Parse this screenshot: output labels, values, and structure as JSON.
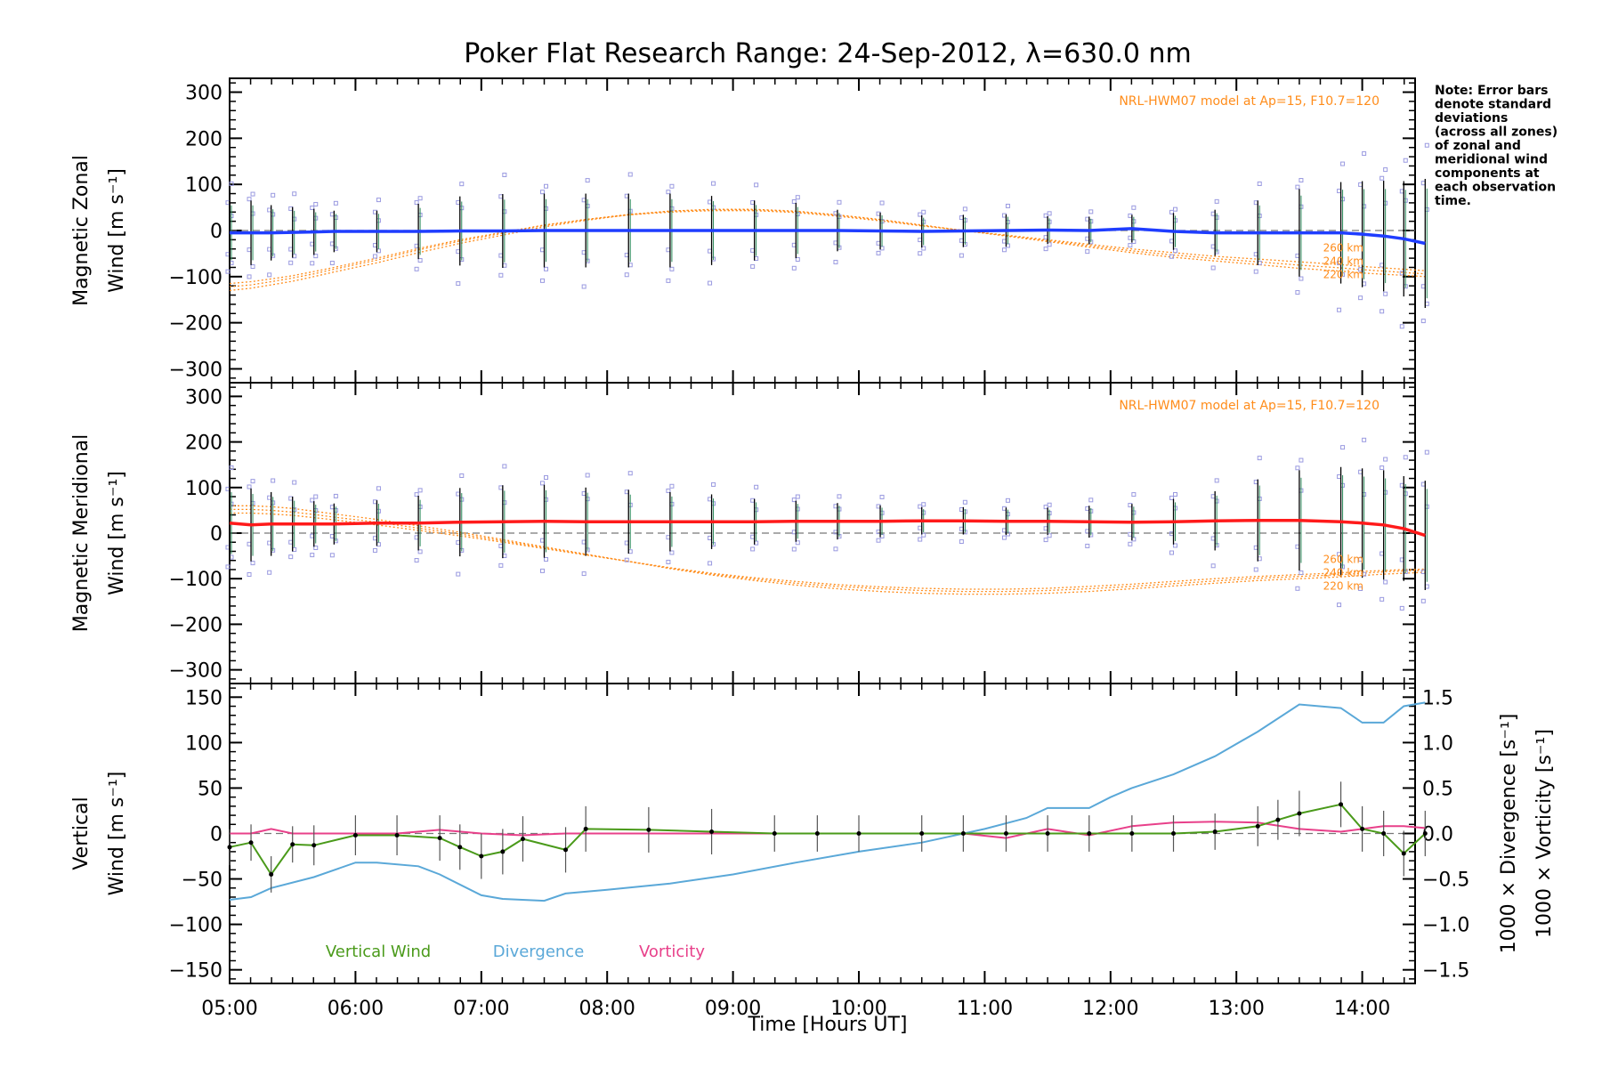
{
  "title": "Poker Flat Research Range: 24-Sep-2012, λ=630.0 nm",
  "note": [
    "Note: Error bars",
    "denote standard",
    "deviations",
    "(across all zones)",
    "of zonal and",
    "meridional wind",
    "components at",
    "each observation",
    "time."
  ],
  "colors": {
    "zonal": "#1f3dff",
    "meridional": "#ff1a1a",
    "model": "#ff8c1a",
    "vertical": "#4a9a1a",
    "divergence": "#5aa8d8",
    "vorticity": "#e8408a",
    "errorbar": "#000000",
    "scatter": "#9a9ae0"
  },
  "chart_data": [
    {
      "type": "line",
      "name": "zonal",
      "ylabel_line1": "Magnetic Zonal",
      "ylabel_line2": "Wind [m s⁻¹]",
      "ylim": [
        -330,
        330
      ],
      "yticks": [
        -300,
        -200,
        -100,
        0,
        100,
        200,
        300
      ],
      "ytick_labels": [
        "−300",
        "−200",
        "−100",
        "0",
        "100",
        "200",
        "300"
      ],
      "model_label": "NRL-HWM07 model at Ap=15, F10.7=120",
      "altitudes": [
        "260 km",
        "240 km",
        "220 km"
      ],
      "x": [
        5.0,
        5.17,
        5.33,
        5.5,
        5.67,
        5.83,
        6.17,
        6.5,
        6.83,
        7.17,
        7.5,
        7.83,
        8.17,
        8.5,
        8.83,
        9.17,
        9.5,
        9.83,
        10.17,
        10.5,
        10.83,
        11.17,
        11.5,
        11.83,
        12.17,
        12.5,
        12.83,
        13.17,
        13.5,
        13.83,
        14.0,
        14.17,
        14.33,
        14.5
      ],
      "y": [
        -5,
        -5,
        -5,
        -4,
        -3,
        -2,
        -2,
        -2,
        -1,
        -1,
        0,
        0,
        0,
        0,
        0,
        0,
        0,
        0,
        -1,
        -2,
        -1,
        0,
        1,
        0,
        4,
        -2,
        -5,
        -5,
        -5,
        -5,
        -8,
        -12,
        -18,
        -28
      ],
      "err": [
        70,
        70,
        60,
        55,
        50,
        45,
        45,
        60,
        75,
        80,
        80,
        80,
        80,
        80,
        75,
        65,
        60,
        45,
        40,
        35,
        35,
        35,
        30,
        30,
        30,
        40,
        50,
        70,
        95,
        110,
        115,
        120,
        125,
        140
      ],
      "model_260": [
        -130,
        -125,
        -118,
        -110,
        -100,
        -90,
        -70,
        -48,
        -28,
        -10,
        8,
        22,
        34,
        42,
        46,
        46,
        42,
        34,
        24,
        12,
        0,
        -12,
        -24,
        -36,
        -48,
        -58,
        -66,
        -74,
        -82,
        -88,
        -92,
        -95,
        -97,
        -100
      ],
      "model_240": [
        -122,
        -118,
        -111,
        -103,
        -94,
        -84,
        -64,
        -42,
        -23,
        -6,
        11,
        24,
        35,
        42,
        45,
        45,
        41,
        33,
        23,
        11,
        0,
        -11,
        -22,
        -33,
        -44,
        -53,
        -61,
        -68,
        -75,
        -81,
        -85,
        -88,
        -91,
        -94
      ],
      "model_220": [
        -115,
        -111,
        -105,
        -98,
        -89,
        -80,
        -60,
        -39,
        -20,
        -4,
        12,
        24,
        34,
        40,
        43,
        43,
        39,
        31,
        21,
        10,
        0,
        -10,
        -20,
        -30,
        -40,
        -48,
        -56,
        -62,
        -68,
        -74,
        -78,
        -81,
        -84,
        -87
      ]
    },
    {
      "type": "line",
      "name": "meridional",
      "ylabel_line1": "Magnetic Meridional",
      "ylabel_line2": "Wind [m s⁻¹]",
      "ylim": [
        -330,
        330
      ],
      "yticks": [
        -300,
        -200,
        -100,
        0,
        100,
        200,
        300
      ],
      "ytick_labels": [
        "−300",
        "−200",
        "−100",
        "0",
        "100",
        "200",
        "300"
      ],
      "model_label": "NRL-HWM07 model at Ap=15, F10.7=120",
      "altitudes": [
        "260 km",
        "240 km",
        "220 km"
      ],
      "x": [
        5.0,
        5.17,
        5.33,
        5.5,
        5.67,
        5.83,
        6.17,
        6.5,
        6.83,
        7.17,
        7.5,
        7.83,
        8.17,
        8.5,
        8.83,
        9.17,
        9.5,
        9.83,
        10.17,
        10.5,
        10.83,
        11.17,
        11.5,
        11.83,
        12.17,
        12.5,
        12.83,
        13.17,
        13.5,
        13.83,
        14.0,
        14.17,
        14.33,
        14.5
      ],
      "y": [
        22,
        18,
        20,
        20,
        20,
        20,
        22,
        22,
        24,
        25,
        26,
        25,
        25,
        25,
        25,
        25,
        26,
        26,
        26,
        27,
        27,
        26,
        26,
        25,
        24,
        25,
        27,
        28,
        28,
        25,
        22,
        18,
        10,
        -5
      ],
      "err": [
        80,
        80,
        70,
        60,
        50,
        45,
        50,
        60,
        75,
        80,
        80,
        75,
        70,
        65,
        60,
        50,
        45,
        40,
        35,
        30,
        30,
        30,
        30,
        35,
        40,
        50,
        65,
        90,
        110,
        120,
        120,
        120,
        115,
        120
      ],
      "model_260": [
        60,
        60,
        58,
        54,
        48,
        42,
        30,
        16,
        2,
        -14,
        -30,
        -46,
        -62,
        -78,
        -92,
        -104,
        -114,
        -122,
        -128,
        -132,
        -134,
        -134,
        -132,
        -128,
        -122,
        -116,
        -110,
        -104,
        -100,
        -96,
        -93,
        -90,
        -88,
        -86
      ],
      "model_240": [
        52,
        52,
        50,
        46,
        41,
        35,
        24,
        11,
        -2,
        -17,
        -32,
        -47,
        -62,
        -77,
        -90,
        -101,
        -110,
        -117,
        -122,
        -126,
        -128,
        -128,
        -126,
        -122,
        -117,
        -111,
        -105,
        -99,
        -95,
        -91,
        -88,
        -85,
        -83,
        -82
      ],
      "model_220": [
        44,
        44,
        42,
        39,
        34,
        29,
        18,
        6,
        -6,
        -20,
        -34,
        -48,
        -62,
        -76,
        -88,
        -98,
        -106,
        -113,
        -118,
        -121,
        -123,
        -123,
        -121,
        -117,
        -112,
        -106,
        -100,
        -95,
        -91,
        -87,
        -84,
        -82,
        -80,
        -79
      ]
    },
    {
      "type": "line",
      "name": "vertical",
      "ylabel_line1": "Vertical",
      "ylabel_line2": "Wind [m s⁻¹]",
      "ylabel_right1": "1000 × Divergence [s⁻¹]",
      "ylabel_right2": "1000 × Vorticity [s⁻¹]",
      "ylim": [
        -165,
        165
      ],
      "yticks": [
        -150,
        -100,
        -50,
        0,
        50,
        100,
        150
      ],
      "ytick_labels": [
        "−150",
        "−100",
        "−50",
        "0",
        "50",
        "100",
        "150"
      ],
      "ylim_right": [
        -1.65,
        1.65
      ],
      "yticks_right": [
        -1.5,
        -1.0,
        -0.5,
        0.0,
        0.5,
        1.0,
        1.5
      ],
      "ytick_labels_right": [
        "−1.5",
        "−1.0",
        "−0.5",
        "0.0",
        "0.5",
        "1.0",
        "1.5"
      ],
      "legend": [
        "Vertical Wind",
        "Divergence",
        "Vorticity"
      ],
      "vertical": {
        "x": [
          5.0,
          5.17,
          5.33,
          5.5,
          5.67,
          6.0,
          6.33,
          6.67,
          6.83,
          7.0,
          7.17,
          7.33,
          7.67,
          7.83,
          8.33,
          8.83,
          9.33,
          9.67,
          10.0,
          10.5,
          10.83,
          11.17,
          11.5,
          11.83,
          12.17,
          12.5,
          12.83,
          13.17,
          13.33,
          13.5,
          13.83,
          14.0,
          14.17,
          14.33,
          14.5
        ],
        "y": [
          -15,
          -10,
          -45,
          -12,
          -13,
          -2,
          -2,
          -5,
          -15,
          -25,
          -20,
          -6,
          -18,
          5,
          4,
          2,
          0,
          0,
          0,
          0,
          0,
          0,
          0,
          0,
          0,
          0,
          2,
          8,
          15,
          22,
          32,
          5,
          0,
          -22,
          0
        ],
        "err": [
          20,
          20,
          20,
          20,
          22,
          22,
          22,
          25,
          25,
          25,
          25,
          25,
          25,
          25,
          25,
          25,
          20,
          20,
          20,
          20,
          20,
          20,
          20,
          20,
          20,
          20,
          20,
          22,
          22,
          25,
          25,
          25,
          25,
          25,
          25
        ]
      },
      "divergence": {
        "x": [
          5.0,
          5.17,
          5.33,
          5.67,
          6.0,
          6.17,
          6.5,
          6.67,
          7.0,
          7.17,
          7.5,
          7.67,
          8.0,
          8.5,
          9.0,
          9.5,
          10.0,
          10.5,
          11.0,
          11.33,
          11.5,
          11.83,
          12.0,
          12.17,
          12.5,
          12.83,
          13.17,
          13.5,
          13.83,
          14.0,
          14.17,
          14.33,
          14.5
        ],
        "y": [
          -0.73,
          -0.7,
          -0.6,
          -0.48,
          -0.32,
          -0.32,
          -0.36,
          -0.45,
          -0.68,
          -0.72,
          -0.74,
          -0.66,
          -0.62,
          -0.55,
          -0.45,
          -0.32,
          -0.2,
          -0.1,
          0.05,
          0.17,
          0.28,
          0.28,
          0.4,
          0.5,
          0.65,
          0.85,
          1.12,
          1.42,
          1.38,
          1.22,
          1.22,
          1.4,
          1.44
        ]
      },
      "vorticity": {
        "x": [
          5.0,
          5.17,
          5.33,
          5.5,
          5.67,
          6.0,
          6.33,
          6.67,
          7.0,
          7.33,
          7.67,
          8.0,
          8.5,
          9.0,
          9.5,
          10.0,
          10.5,
          10.83,
          11.17,
          11.5,
          11.83,
          12.17,
          12.5,
          12.83,
          13.17,
          13.5,
          13.83,
          14.17,
          14.33,
          14.5
        ],
        "y": [
          0.0,
          0.0,
          0.05,
          0.0,
          0.0,
          0.0,
          0.0,
          0.04,
          0.0,
          -0.02,
          0.0,
          0.0,
          0.0,
          0.0,
          0.0,
          0.0,
          0.0,
          0.0,
          -0.05,
          0.05,
          -0.02,
          0.08,
          0.12,
          0.13,
          0.12,
          0.05,
          0.02,
          0.08,
          0.08,
          0.06
        ]
      }
    }
  ],
  "xaxis": {
    "xlim": [
      5.0,
      14.42
    ],
    "xticks": [
      5,
      6,
      7,
      8,
      9,
      10,
      11,
      12,
      13,
      14
    ],
    "xtick_labels": [
      "05:00",
      "06:00",
      "07:00",
      "08:00",
      "09:00",
      "10:00",
      "11:00",
      "12:00",
      "13:00",
      "14:00"
    ],
    "xlabel": "Time [Hours UT]"
  }
}
